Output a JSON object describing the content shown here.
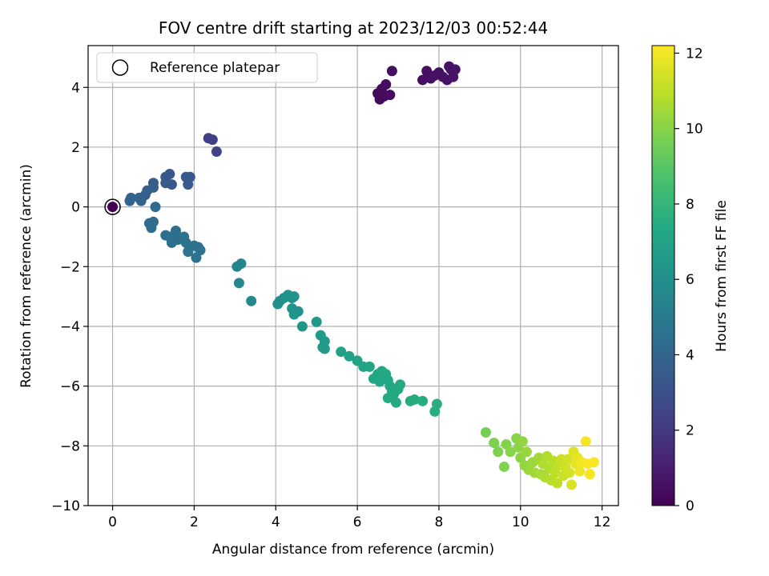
{
  "chart_data": {
    "type": "scatter",
    "title": "FOV centre drift starting at 2023/12/03 00:52:44",
    "xlabel": "Angular distance from reference (arcmin)",
    "ylabel": "Rotation from reference (arcmin)",
    "xlim": [
      -0.6,
      12.4
    ],
    "ylim": [
      -10,
      5.4
    ],
    "xticks": [
      0,
      2,
      4,
      6,
      8,
      10,
      12
    ],
    "yticks": [
      -10,
      -8,
      -6,
      -4,
      -2,
      0,
      2,
      4
    ],
    "grid": true,
    "legend": {
      "label": "Reference platepar",
      "placement": "top-left"
    },
    "reference_point": {
      "x": 0,
      "y": 0
    },
    "colorbar": {
      "label": "Hours from first FF file",
      "colormap": "viridis",
      "range": [
        0,
        12.2
      ],
      "ticks": [
        0,
        2,
        4,
        6,
        8,
        10,
        12
      ]
    },
    "series": [
      {
        "columns": [
          "x",
          "y",
          "hours"
        ],
        "points": [
          [
            0,
            0,
            0
          ],
          [
            6.5,
            3.8,
            0.3
          ],
          [
            6.55,
            3.6,
            0.3
          ],
          [
            6.6,
            3.95,
            0.35
          ],
          [
            6.65,
            3.7,
            0.35
          ],
          [
            6.7,
            4.1,
            0.4
          ],
          [
            6.8,
            3.75,
            0.4
          ],
          [
            6.85,
            4.55,
            0.45
          ],
          [
            7.6,
            4.25,
            0.5
          ],
          [
            7.7,
            4.55,
            0.5
          ],
          [
            7.8,
            4.3,
            0.5
          ],
          [
            7.9,
            4.4,
            0.55
          ],
          [
            8.0,
            4.5,
            0.55
          ],
          [
            8.1,
            4.35,
            0.6
          ],
          [
            8.2,
            4.25,
            0.6
          ],
          [
            8.25,
            4.7,
            0.6
          ],
          [
            8.3,
            4.6,
            0.65
          ],
          [
            8.35,
            4.35,
            0.65
          ],
          [
            8.4,
            4.6,
            0.7
          ],
          [
            2.35,
            2.3,
            2.2
          ],
          [
            2.45,
            2.25,
            2.3
          ],
          [
            2.55,
            1.85,
            2.4
          ],
          [
            1.3,
            1.0,
            3.3
          ],
          [
            1.4,
            1.1,
            3.3
          ],
          [
            1.3,
            0.8,
            3.4
          ],
          [
            1.45,
            0.75,
            3.4
          ],
          [
            1.8,
            1.0,
            3.4
          ],
          [
            1.9,
            1.0,
            3.4
          ],
          [
            1.85,
            0.75,
            3.5
          ],
          [
            1.0,
            0.8,
            3.6
          ],
          [
            1.0,
            0.65,
            3.6
          ],
          [
            0.85,
            0.55,
            3.7
          ],
          [
            0.8,
            0.4,
            3.7
          ],
          [
            0.65,
            0.3,
            3.8
          ],
          [
            0.7,
            0.2,
            3.8
          ],
          [
            0.45,
            0.3,
            3.9
          ],
          [
            0.42,
            0.2,
            3.9
          ],
          [
            1.05,
            0.0,
            4.2
          ],
          [
            0.9,
            -0.55,
            4.3
          ],
          [
            1.0,
            -0.5,
            4.3
          ],
          [
            0.95,
            -0.7,
            4.3
          ],
          [
            1.3,
            -0.95,
            4.4
          ],
          [
            1.4,
            -1.0,
            4.4
          ],
          [
            1.45,
            -1.2,
            4.5
          ],
          [
            1.55,
            -0.8,
            4.5
          ],
          [
            1.6,
            -1.1,
            4.5
          ],
          [
            1.75,
            -1.0,
            4.6
          ],
          [
            1.8,
            -1.2,
            4.6
          ],
          [
            1.85,
            -1.5,
            4.6
          ],
          [
            2.0,
            -1.3,
            4.7
          ],
          [
            2.05,
            -1.7,
            4.7
          ],
          [
            2.1,
            -1.35,
            4.7
          ],
          [
            2.15,
            -1.45,
            4.7
          ],
          [
            3.05,
            -2.0,
            5.5
          ],
          [
            3.15,
            -1.9,
            5.5
          ],
          [
            3.1,
            -2.55,
            5.6
          ],
          [
            3.4,
            -3.15,
            5.7
          ],
          [
            4.05,
            -3.25,
            6.1
          ],
          [
            4.1,
            -3.15,
            6.1
          ],
          [
            4.2,
            -3.05,
            6.1
          ],
          [
            4.3,
            -2.95,
            6.2
          ],
          [
            4.4,
            -3.05,
            6.2
          ],
          [
            4.45,
            -3.0,
            6.2
          ],
          [
            4.4,
            -3.4,
            6.3
          ],
          [
            4.45,
            -3.6,
            6.3
          ],
          [
            4.55,
            -3.5,
            6.3
          ],
          [
            4.65,
            -4.0,
            6.4
          ],
          [
            5.0,
            -3.85,
            6.5
          ],
          [
            5.1,
            -4.3,
            6.6
          ],
          [
            5.2,
            -4.5,
            6.6
          ],
          [
            5.15,
            -4.7,
            6.6
          ],
          [
            5.2,
            -4.75,
            6.7
          ],
          [
            5.6,
            -4.85,
            6.9
          ],
          [
            5.8,
            -5.0,
            7.0
          ],
          [
            6.0,
            -5.15,
            7.0
          ],
          [
            6.15,
            -5.35,
            7.1
          ],
          [
            6.3,
            -5.35,
            7.1
          ],
          [
            6.4,
            -5.75,
            7.2
          ],
          [
            6.5,
            -5.6,
            7.2
          ],
          [
            6.55,
            -5.85,
            7.2
          ],
          [
            6.6,
            -5.5,
            7.3
          ],
          [
            6.7,
            -5.6,
            7.3
          ],
          [
            6.75,
            -5.8,
            7.3
          ],
          [
            6.8,
            -6.0,
            7.3
          ],
          [
            6.85,
            -6.2,
            7.3
          ],
          [
            6.75,
            -6.4,
            7.4
          ],
          [
            6.9,
            -6.25,
            7.4
          ],
          [
            7.0,
            -6.1,
            7.4
          ],
          [
            7.05,
            -5.95,
            7.4
          ],
          [
            6.95,
            -6.55,
            7.4
          ],
          [
            7.3,
            -6.5,
            7.5
          ],
          [
            7.4,
            -6.45,
            7.5
          ],
          [
            7.6,
            -6.5,
            7.5
          ],
          [
            7.95,
            -6.6,
            7.6
          ],
          [
            7.9,
            -6.85,
            7.6
          ],
          [
            9.15,
            -7.55,
            9.6
          ],
          [
            9.35,
            -7.9,
            9.8
          ],
          [
            9.45,
            -8.2,
            9.8
          ],
          [
            9.6,
            -8.7,
            9.9
          ],
          [
            9.65,
            -7.95,
            9.9
          ],
          [
            9.75,
            -8.2,
            10.0
          ],
          [
            9.9,
            -7.75,
            10.0
          ],
          [
            9.95,
            -8.05,
            10.1
          ],
          [
            10.0,
            -8.4,
            10.1
          ],
          [
            10.05,
            -7.85,
            10.2
          ],
          [
            10.1,
            -8.65,
            10.2
          ],
          [
            10.15,
            -8.2,
            10.3
          ],
          [
            10.2,
            -8.8,
            10.3
          ],
          [
            10.3,
            -8.55,
            10.4
          ],
          [
            10.35,
            -8.9,
            10.5
          ],
          [
            10.45,
            -8.4,
            10.5
          ],
          [
            10.5,
            -8.95,
            10.6
          ],
          [
            10.55,
            -8.6,
            10.7
          ],
          [
            10.6,
            -9.05,
            10.7
          ],
          [
            10.65,
            -8.35,
            10.8
          ],
          [
            10.7,
            -8.75,
            10.8
          ],
          [
            10.75,
            -9.15,
            10.9
          ],
          [
            10.8,
            -8.5,
            10.9
          ],
          [
            10.85,
            -8.9,
            11.0
          ],
          [
            10.9,
            -9.25,
            11.0
          ],
          [
            10.95,
            -8.65,
            11.1
          ],
          [
            11.0,
            -8.45,
            11.2
          ],
          [
            11.05,
            -9.0,
            11.2
          ],
          [
            11.1,
            -8.7,
            11.3
          ],
          [
            11.15,
            -8.45,
            11.4
          ],
          [
            11.2,
            -8.9,
            11.4
          ],
          [
            11.25,
            -9.3,
            11.5
          ],
          [
            11.3,
            -8.2,
            11.6
          ],
          [
            11.35,
            -8.6,
            11.7
          ],
          [
            11.4,
            -8.4,
            11.8
          ],
          [
            11.45,
            -8.85,
            11.9
          ],
          [
            11.5,
            -8.55,
            12.0
          ],
          [
            11.6,
            -7.85,
            12.0
          ],
          [
            11.65,
            -8.6,
            12.1
          ],
          [
            11.7,
            -8.95,
            12.1
          ],
          [
            11.8,
            -8.55,
            12.1
          ]
        ]
      }
    ]
  }
}
